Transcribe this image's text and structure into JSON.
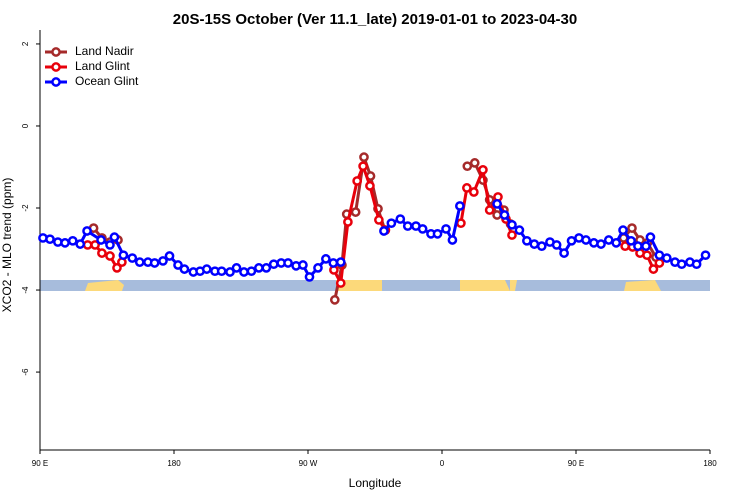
{
  "chart_data": {
    "type": "line",
    "title": "20S-15S October (Ver 11.1_late)   2019-01-01 to 2023-04-30",
    "x_label": "Longitude",
    "y_label": "XCO2 - MLO trend (ppm)",
    "xlim": [
      90,
      540
    ],
    "ylim": [
      -7.9,
      2.34
    ],
    "xticks": [
      {
        "value": 90,
        "label": "90 E"
      },
      180,
      {
        "value": 270,
        "label": "90 W"
      },
      0,
      {
        "value": 450,
        "label": "90 E"
      },
      {
        "value": 540,
        "label": "180"
      }
    ],
    "yticks": [
      2,
      0,
      -2,
      -4,
      -6
    ],
    "legend": "top-left",
    "series": [
      {
        "name": "Land Nadir",
        "color": "#a52a2a",
        "x": [
          126,
          131.6,
          137,
          142.4,
          null,
          288,
          292.8,
          296,
          302,
          307.6,
          312,
          317,
          321.7,
          null,
          377,
          382,
          387.5,
          392,
          397,
          401.6,
          406,
          null,
          482,
          487.6,
          493,
          498,
          503.7
        ],
        "values": [
          -2.49,
          -2.73,
          -2.83,
          -2.78,
          null,
          -4.24,
          -3.39,
          -2.15,
          -2.1,
          -0.76,
          -1.22,
          -2.02,
          -2.54,
          null,
          -0.98,
          -0.9,
          -1.32,
          -1.8,
          -2.17,
          -2.05,
          -2.39,
          null,
          -2.73,
          -2.49,
          -2.78,
          -2.85,
          -3.2
        ]
      },
      {
        "name": "Land Glint",
        "color": "#e8000b",
        "x": [
          122,
          127,
          131.6,
          137,
          141.7,
          145,
          null,
          287.4,
          292,
          296.8,
          303,
          307,
          311.6,
          317.6,
          322,
          null,
          372.7,
          376.7,
          381.4,
          387.5,
          392,
          397.6,
          403,
          407,
          null,
          483,
          488,
          493,
          497.7,
          502,
          506
        ],
        "values": [
          -2.9,
          -2.9,
          -3.1,
          -3.17,
          -3.46,
          -3.32,
          null,
          -3.51,
          -3.83,
          -2.34,
          -1.34,
          -0.98,
          -1.46,
          -2.29,
          -2.54,
          null,
          -2.37,
          -1.51,
          -1.61,
          -1.07,
          -2.05,
          -1.73,
          -2.27,
          -2.66,
          null,
          -2.93,
          -2.95,
          -3.1,
          -3.15,
          -3.49,
          -3.34
        ]
      },
      {
        "name": "Ocean Glint",
        "color": "#0000ff",
        "x": [
          92,
          96.7,
          102,
          106.8,
          112,
          117,
          121.6,
          131,
          137,
          140,
          146,
          152,
          157,
          162.5,
          167,
          172.6,
          177,
          182.7,
          187,
          193,
          197.5,
          202,
          207.5,
          212,
          217.6,
          222,
          227,
          232,
          237,
          242,
          247,
          252,
          256.6,
          262,
          266.6,
          271,
          276.7,
          282,
          287,
          292,
          null,
          321,
          326,
          332,
          337,
          342.5,
          347,
          352.6,
          357,
          362.7,
          367,
          372,
          null,
          397,
          402,
          407,
          412,
          417,
          422,
          427,
          432.5,
          437,
          442,
          447,
          452,
          456.7,
          462,
          466.8,
          472,
          477,
          481.6,
          487,
          491.6,
          497,
          500,
          506,
          511,
          516.5,
          521,
          526.5,
          531,
          537
        ],
        "values": [
          -2.73,
          -2.76,
          -2.83,
          -2.85,
          -2.8,
          -2.88,
          -2.56,
          -2.78,
          -2.9,
          -2.71,
          -3.15,
          -3.22,
          -3.32,
          -3.32,
          -3.34,
          -3.29,
          -3.17,
          -3.39,
          -3.49,
          -3.56,
          -3.54,
          -3.49,
          -3.54,
          -3.54,
          -3.56,
          -3.46,
          -3.56,
          -3.54,
          -3.46,
          -3.46,
          -3.37,
          -3.34,
          -3.34,
          -3.41,
          -3.39,
          -3.68,
          -3.46,
          -3.24,
          -3.34,
          -3.32,
          null,
          -2.56,
          -2.37,
          -2.27,
          -2.44,
          -2.44,
          -2.51,
          -2.63,
          -2.63,
          -2.51,
          -2.78,
          -1.95,
          null,
          -1.9,
          -2.17,
          -2.41,
          -2.54,
          -2.8,
          -2.88,
          -2.93,
          -2.83,
          -2.9,
          -3.1,
          -2.8,
          -2.73,
          -2.78,
          -2.85,
          -2.88,
          -2.78,
          -2.85,
          -2.54,
          -2.8,
          -2.93,
          -2.93,
          -2.71,
          -3.15,
          -3.22,
          -3.32,
          -3.37,
          -3.32,
          -3.37,
          -3.15
        ]
      }
    ]
  }
}
